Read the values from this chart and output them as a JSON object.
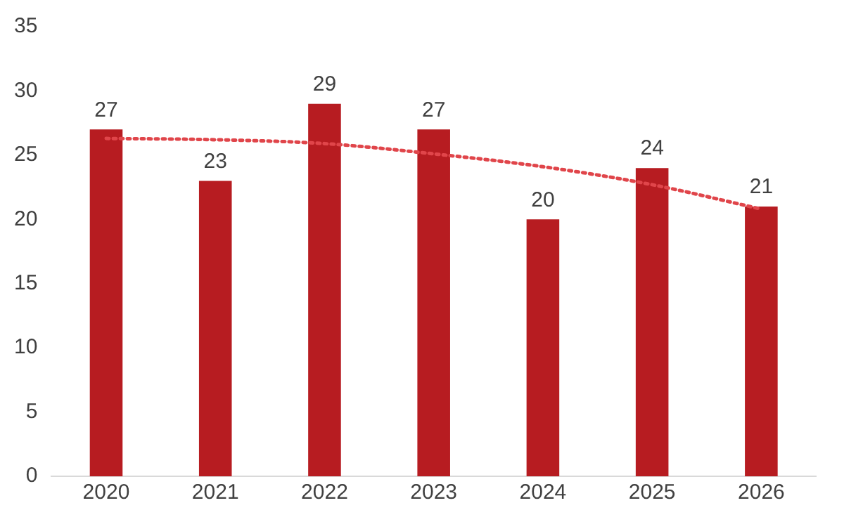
{
  "chart_data": {
    "type": "bar",
    "categories": [
      "2020",
      "2021",
      "2022",
      "2023",
      "2024",
      "2025",
      "2026"
    ],
    "series": [
      {
        "color": "#b71c21",
        "values": [
          27,
          23,
          29,
          27,
          20,
          24,
          21
        ],
        "value_labels": [
          "27",
          "23",
          "29",
          "27",
          "20",
          "24",
          "21"
        ]
      },
      {
        "type": "line",
        "color": "#e0454a",
        "line_style": "dotted",
        "marker": "none",
        "values": [
          26.3,
          26.2,
          25.9,
          25.1,
          24.1,
          22.7,
          20.8
        ]
      }
    ],
    "ylim": [
      0,
      35
    ],
    "yticks": [
      0,
      5,
      10,
      15,
      20,
      25,
      30,
      35
    ],
    "grid": false,
    "legend": false
  }
}
